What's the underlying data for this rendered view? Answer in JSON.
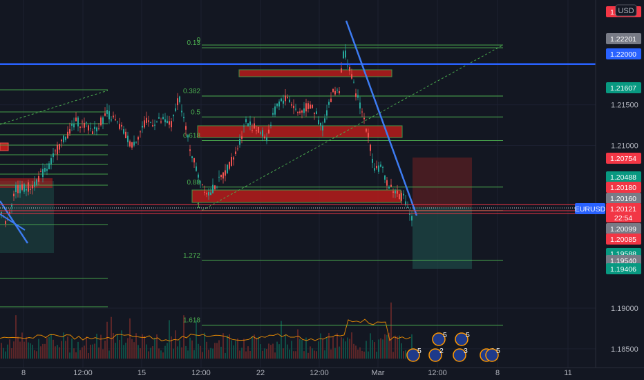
{
  "chart_data": {
    "type": "candlestick",
    "symbol": "EURUSD",
    "currency": "USD",
    "countdown": "22:54",
    "x_ticks": [
      "8",
      "12:00",
      "15",
      "12:00",
      "22",
      "12:00",
      "Mar",
      "12:00",
      "8",
      "11"
    ],
    "y_ticks": [
      "1.21500",
      "1.21000",
      "1.19000",
      "1.18500"
    ],
    "ylim": [
      1.1838,
      1.2272
    ],
    "price_badges": [
      {
        "value": "1.22235",
        "color": "#f23645",
        "key": "fib0"
      },
      {
        "value": "1.22201",
        "color": "#787b86",
        "key": "fib013"
      },
      {
        "value": "1.22000",
        "color": "#2962ff",
        "key": "hline"
      },
      {
        "value": "1.21607",
        "color": "#089981",
        "key": "fib0382"
      },
      {
        "value": "1.20754",
        "color": "#f23645",
        "key": "stop"
      },
      {
        "value": "1.20488",
        "color": "#089981",
        "key": "fib088"
      },
      {
        "value": "1.20180",
        "color": "#f23645",
        "key": "entry_hi"
      },
      {
        "value": "1.20160",
        "color": "#787b86",
        "key": "entry_lo"
      },
      {
        "value": "1.20099",
        "color": "#787b86",
        "key": "low"
      },
      {
        "value": "1.20085",
        "color": "#f23645",
        "key": "short"
      },
      {
        "value": "1.19588",
        "color": "#089981",
        "key": "fib1272"
      },
      {
        "value": "1.19540",
        "color": "#787b86",
        "key": "hidden"
      },
      {
        "value": "1.19406",
        "color": "#089981",
        "key": "target"
      }
    ],
    "last_price": {
      "label": "EURUSD",
      "value": "1.20121",
      "color": "#f23645"
    },
    "fib_levels": [
      {
        "label": "0",
        "price": 1.22235
      },
      {
        "label": "0.13",
        "price": 1.22201
      },
      {
        "label": "0.382",
        "price": 1.21607
      },
      {
        "label": "0.5",
        "price": 1.2135
      },
      {
        "label": "0.618",
        "price": 1.2106
      },
      {
        "label": "0.88",
        "price": 1.20488
      },
      {
        "label": "1",
        "price": 1.202
      },
      {
        "label": "1.272",
        "price": 1.19588
      },
      {
        "label": "1.618",
        "price": 1.1879
      }
    ],
    "horizontal_line": 1.22,
    "event_markers": [
      "5",
      "5",
      "5",
      "2",
      "3",
      "3",
      "5"
    ],
    "colors": {
      "up": "#26a69a",
      "down": "#ef5350",
      "fib": "#4caf50",
      "trend": "#2962ff",
      "zone": "#b71c1c"
    }
  }
}
